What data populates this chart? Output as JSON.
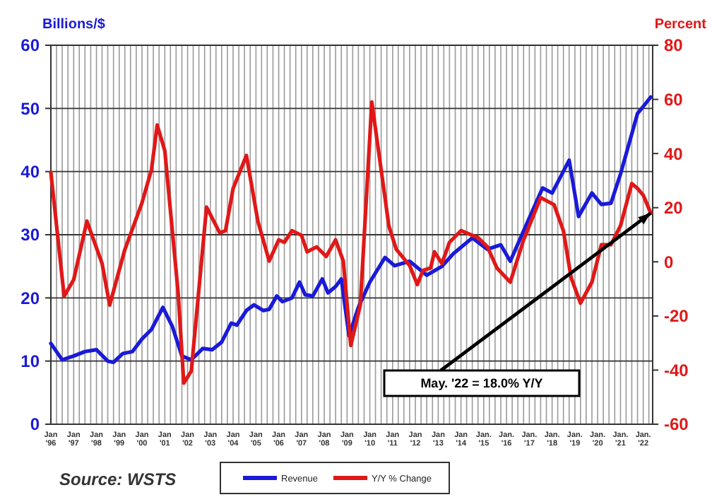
{
  "chart_data": {
    "type": "line",
    "ylabel": "Billions/$",
    "y2label": "Percent",
    "xlim": [
      "1996-01",
      "2022-06"
    ],
    "xticks": [
      {
        "value": "1996-01",
        "label": "Jan '96"
      },
      {
        "value": "1997-01",
        "label": "Jan '97"
      },
      {
        "value": "1998-01",
        "label": "Jan '98"
      },
      {
        "value": "1999-01",
        "label": "Jan '99"
      },
      {
        "value": "2000-01",
        "label": "Jan '00"
      },
      {
        "value": "2001-01",
        "label": "Jan '01"
      },
      {
        "value": "2002-01",
        "label": "Jan '02"
      },
      {
        "value": "2003-01",
        "label": "Jan '03"
      },
      {
        "value": "2004-01",
        "label": "Jan '04"
      },
      {
        "value": "2005-01",
        "label": "Jan '05"
      },
      {
        "value": "2006-01",
        "label": "Jan '06"
      },
      {
        "value": "2007-01",
        "label": "Jan '07"
      },
      {
        "value": "2008-01",
        "label": "Jan '08"
      },
      {
        "value": "2009-01",
        "label": "Jan '09"
      },
      {
        "value": "2010-01",
        "label": "Jan '10"
      },
      {
        "value": "2011-01",
        "label": "Jan '11"
      },
      {
        "value": "2012-01",
        "label": "Jan '12"
      },
      {
        "value": "2013-01",
        "label": "Jan '13"
      },
      {
        "value": "2014-01",
        "label": "Jan '14"
      },
      {
        "value": "2015-01",
        "label": "Jan. '15"
      },
      {
        "value": "2016-01",
        "label": "Jan. '16"
      },
      {
        "value": "2017-01",
        "label": "Jan. '17"
      },
      {
        "value": "2018-01",
        "label": "Jan. '18"
      },
      {
        "value": "2019-01",
        "label": "Jan. '19"
      },
      {
        "value": "2020-01",
        "label": "Jan. '20"
      },
      {
        "value": "2021-01",
        "label": "Jan. '21"
      },
      {
        "value": "2022-01",
        "label": "Jan. '22"
      }
    ],
    "ylim": [
      0,
      60
    ],
    "yticks": [
      0,
      10,
      20,
      30,
      40,
      50,
      60
    ],
    "y2lim": [
      -60,
      80
    ],
    "y2ticks": [
      -60,
      -40,
      -20,
      0,
      20,
      40,
      60,
      80
    ],
    "grid": true,
    "legend": "bottom",
    "line_style": "solid",
    "marker": "none",
    "series": [
      {
        "name": "Revenue",
        "color": "#1a1ad8",
        "x": [
          "1996-01",
          "1996-07",
          "1997-01",
          "1997-07",
          "1998-01",
          "1998-07",
          "1998-10",
          "1999-03",
          "1999-08",
          "2000-01",
          "2000-06",
          "2000-12",
          "2001-05",
          "2001-10",
          "2002-03",
          "2002-09",
          "2003-02",
          "2003-07",
          "2003-12",
          "2004-03",
          "2004-08",
          "2004-12",
          "2005-05",
          "2005-08",
          "2005-12",
          "2006-03",
          "2006-08",
          "2006-12",
          "2007-03",
          "2007-07",
          "2007-12",
          "2008-03",
          "2008-07",
          "2008-10",
          "2009-02",
          "2009-07",
          "2010-01",
          "2010-09",
          "2011-02",
          "2011-10",
          "2012-07",
          "2013-03",
          "2013-09",
          "2014-07",
          "2015-03",
          "2015-10",
          "2016-03",
          "2016-10",
          "2017-08",
          "2018-01",
          "2018-10",
          "2019-03",
          "2019-10",
          "2020-03",
          "2020-08",
          "2021-01",
          "2021-10",
          "2022-01",
          "2022-05"
        ],
        "values": [
          12.8,
          10.2,
          10.8,
          11.5,
          11.8,
          10,
          9.8,
          11.2,
          11.5,
          13.5,
          15,
          18.5,
          15.5,
          10.8,
          10.2,
          12,
          11.8,
          13,
          16,
          15.7,
          18,
          18.9,
          18,
          18.2,
          20.3,
          19.4,
          20,
          22.5,
          20.5,
          20.3,
          23,
          20.8,
          21.8,
          23,
          14,
          18.5,
          22.5,
          26.4,
          25.1,
          25.8,
          23.6,
          25,
          27,
          29.5,
          27.7,
          28.4,
          25.8,
          30.6,
          37.4,
          36.6,
          41.8,
          32.9,
          36.6,
          34.8,
          35,
          39.6,
          49.2,
          50.3,
          51.8
        ]
      },
      {
        "name": "Y/Y % Change",
        "color": "#e01818",
        "axis": "y2",
        "x": [
          "1996-01",
          "1996-08",
          "1997-01",
          "1997-08",
          "1998-04",
          "1998-08",
          "1999-04",
          "2000-01",
          "2000-06",
          "2000-09",
          "2001-01",
          "2001-08",
          "2001-11",
          "2002-03",
          "2002-11",
          "2003-06",
          "2003-09",
          "2004-01",
          "2004-08",
          "2005-02",
          "2005-08",
          "2006-01",
          "2006-04",
          "2006-08",
          "2007-01",
          "2007-04",
          "2007-09",
          "2008-02",
          "2008-07",
          "2008-11",
          "2009-03",
          "2009-08",
          "2010-02",
          "2010-09",
          "2010-11",
          "2011-03",
          "2011-10",
          "2012-02",
          "2012-05",
          "2012-09",
          "2012-11",
          "2013-03",
          "2013-07",
          "2014-01",
          "2014-10",
          "2015-03",
          "2015-08",
          "2016-03",
          "2016-10",
          "2017-07",
          "2018-02",
          "2018-07",
          "2018-11",
          "2019-04",
          "2019-10",
          "2020-03",
          "2020-08",
          "2021-01",
          "2021-07",
          "2021-10",
          "2022-01",
          "2022-05"
        ],
        "values": [
          33,
          -12.7,
          -6.6,
          15,
          -0.6,
          -16,
          4.5,
          21.8,
          34,
          50.5,
          41,
          -11,
          -44.8,
          -40.4,
          20.2,
          10.7,
          11.5,
          27.1,
          39.3,
          15,
          0.3,
          8.1,
          7.2,
          11.5,
          9.8,
          3.7,
          5.5,
          2,
          8.1,
          0.3,
          -30.9,
          -16,
          59,
          23.7,
          13.3,
          4.6,
          -1.4,
          -8.4,
          -3.2,
          -2.3,
          3.7,
          -0.6,
          7.2,
          11.5,
          8.9,
          5.5,
          -2.3,
          -7.5,
          8.1,
          23.7,
          21.1,
          11.5,
          -5.8,
          -15.3,
          -7.5,
          6.3,
          6.3,
          13.3,
          28.9,
          27.1,
          24.6,
          18
        ]
      }
    ],
    "annotations": [
      "May. '22 = 18.0% Y/Y",
      "Source: WSTS"
    ]
  }
}
